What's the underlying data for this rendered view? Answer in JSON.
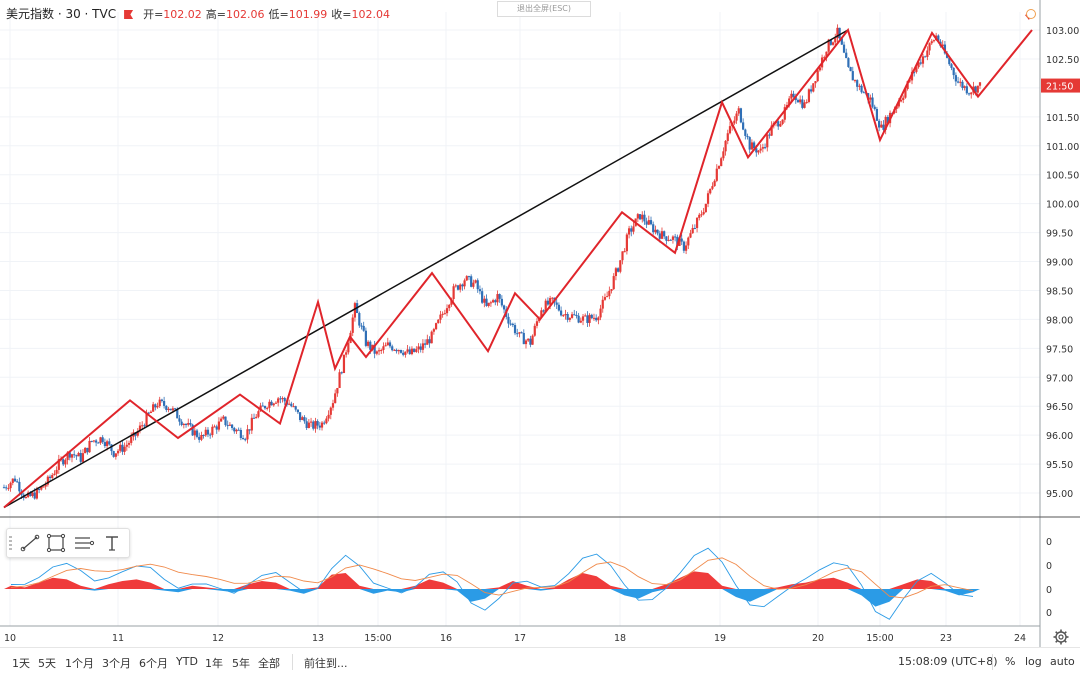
{
  "header": {
    "symbol": "美元指数 · 30 · TVC",
    "open_label": "开=",
    "open": "102.02",
    "high_label": "高=",
    "high": "102.06",
    "low_label": "低=",
    "low": "101.99",
    "close_label": "收=",
    "close": "102.04"
  },
  "exit_fullscreen": "退出全屏(ESC)",
  "price_tag": "21:50",
  "colors": {
    "up": "#e53935",
    "down": "#2f6fb6",
    "trend": "#111111",
    "zigzag": "#e0252b",
    "macd_pos": "#ef3b3b",
    "macd_neg": "#2b9be6",
    "signal_fast": "#2b9be6",
    "signal_slow": "#f08a4b"
  },
  "bottom_bar": {
    "ranges": [
      "1天",
      "5天",
      "1个月",
      "3个月",
      "6个月",
      "YTD",
      "1年",
      "5年",
      "全部"
    ],
    "goto": "前往到...",
    "time": "15:08:09 (UTC+8)",
    "options": [
      "%",
      "log",
      "auto"
    ]
  },
  "chart_data": {
    "type": "candlestick",
    "title": "",
    "ylim": [
      94.6,
      103.2
    ],
    "y_ticks": [
      "103.00",
      "102.50",
      "102.00",
      "101.50",
      "101.00",
      "100.50",
      "100.00",
      "99.50",
      "99.00",
      "98.50",
      "98.00",
      "97.50",
      "97.00",
      "96.50",
      "96.00",
      "95.50",
      "95.00"
    ],
    "x_ticks": [
      "10",
      "11",
      "12",
      "13",
      "15:00",
      "16",
      "17",
      "18",
      "19",
      "20",
      "15:00",
      "23",
      "24"
    ],
    "price_path": [
      95.1,
      95.25,
      94.9,
      95.0,
      95.2,
      95.5,
      95.7,
      95.6,
      95.9,
      95.95,
      95.7,
      95.8,
      96.0,
      96.3,
      96.55,
      96.5,
      96.3,
      96.1,
      95.95,
      96.1,
      96.25,
      96.1,
      96.0,
      96.35,
      96.55,
      96.65,
      96.55,
      96.3,
      96.15,
      96.2,
      96.6,
      97.3,
      98.2,
      97.6,
      97.4,
      97.55,
      97.5,
      97.4,
      97.5,
      97.7,
      98.1,
      98.5,
      98.7,
      98.6,
      98.2,
      98.4,
      98.0,
      97.7,
      97.6,
      98.2,
      98.3,
      98.1,
      98.05,
      98.0,
      98.05,
      98.4,
      98.9,
      99.5,
      99.8,
      99.6,
      99.45,
      99.4,
      99.25,
      99.6,
      100.0,
      100.6,
      101.2,
      101.6,
      101.0,
      100.9,
      101.3,
      101.5,
      101.9,
      101.7,
      102.2,
      102.7,
      102.95,
      102.3,
      102.0,
      101.8,
      101.3,
      101.6,
      101.9,
      102.3,
      102.6,
      102.9,
      102.5,
      102.1,
      101.95,
      102.04
    ],
    "trendline": [
      [
        94.75,
        "10"
      ],
      [
        103.0,
        "20"
      ]
    ],
    "zigzag": [
      94.75,
      96.6,
      95.95,
      96.7,
      96.2,
      98.3,
      97.15,
      97.7,
      97.35,
      98.8,
      97.45,
      98.45,
      98.0,
      99.85,
      99.15,
      101.75,
      100.8,
      103.0,
      101.1,
      102.95,
      101.85,
      103.0
    ],
    "macd": {
      "type": "histogram+2 lines",
      "y_ticks": [
        "0",
        "0",
        "0",
        "0"
      ],
      "hist": [
        0.1,
        0.05,
        0.2,
        0.35,
        0.3,
        0.1,
        -0.05,
        0.15,
        0.25,
        0.3,
        0.2,
        -0.05,
        -0.1,
        0.1,
        0.05,
        -0.05,
        -0.1,
        0.15,
        0.25,
        0.2,
        -0.05,
        -0.15,
        0.05,
        0.45,
        0.5,
        0.1,
        -0.15,
        -0.05,
        -0.1,
        0.1,
        0.3,
        0.2,
        -0.05,
        -0.4,
        -0.3,
        0.05,
        0.25,
        0.1,
        -0.05,
        0.05,
        0.3,
        0.5,
        0.4,
        0.1,
        -0.2,
        -0.3,
        -0.1,
        0.15,
        0.35,
        0.55,
        0.5,
        0.1,
        -0.25,
        -0.4,
        -0.2,
        0.05,
        0.15,
        0.2,
        0.3,
        0.35,
        0.2,
        -0.2,
        -0.55,
        -0.4,
        0.15,
        0.3,
        0.25,
        -0.05,
        -0.2,
        -0.1
      ]
    }
  }
}
